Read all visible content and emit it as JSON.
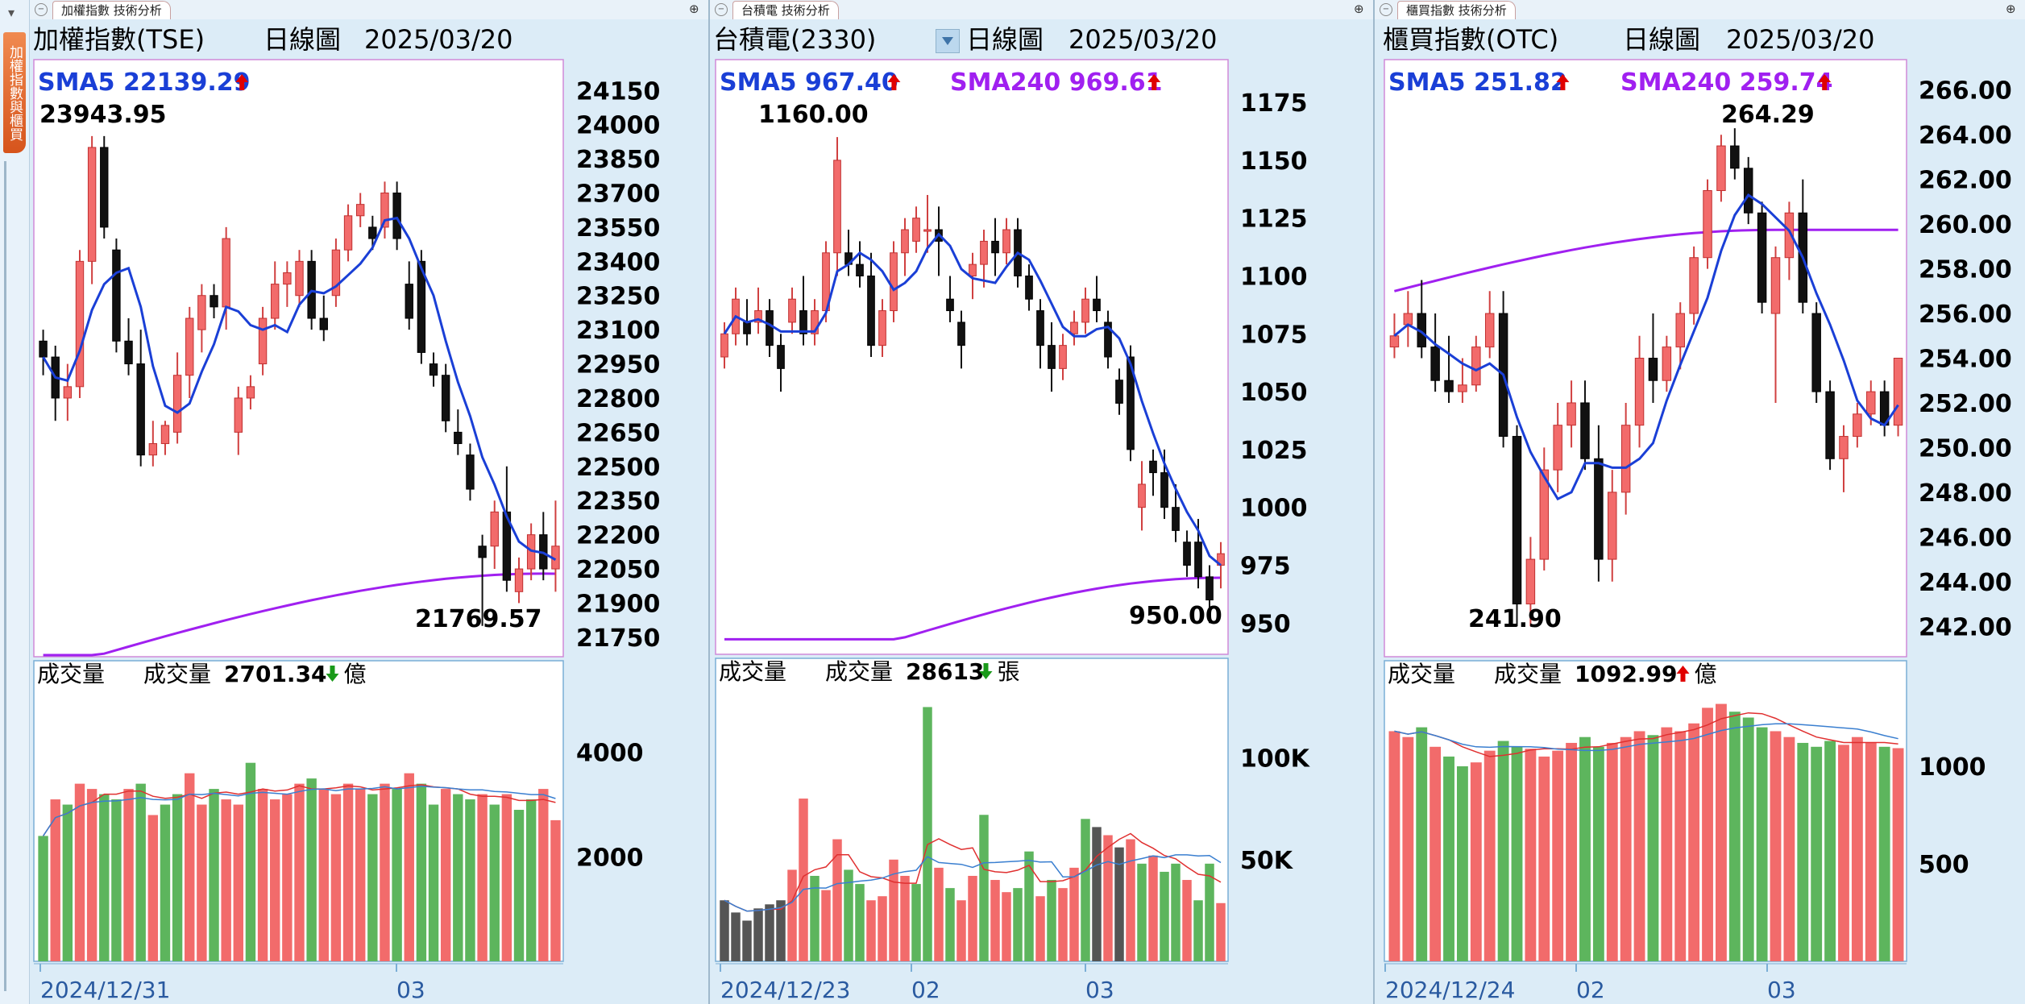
{
  "sidebar": {
    "tab_label": "加權指數與櫃買",
    "menu_icon": "triangle-down-icon"
  },
  "panels": [
    {
      "id": "tse",
      "tab_label": "加權指數 技術分析",
      "name": "加權指數(TSE)",
      "period": "日線圖",
      "date": "2025/03/20",
      "sma5_label": "SMA5 22139.29",
      "sma5_dir": "up",
      "sma240_label": "",
      "sma240_dir": "",
      "high_label": "23943.95",
      "low_label": "21769.57",
      "price_ticks": [
        24150,
        24000,
        23850,
        23700,
        23550,
        23400,
        23250,
        23100,
        22950,
        22800,
        22650,
        22500,
        22350,
        22200,
        22050,
        21900,
        21750
      ],
      "price_tick_labels": [
        "24150",
        "24000",
        "23850",
        "23700",
        "23550",
        "23400",
        "23250",
        "23100",
        "22950",
        "22800",
        "22650",
        "22500",
        "22350",
        "22200",
        "22050",
        "21900",
        "21750"
      ],
      "vol_title": "成交量",
      "vol_label": "成交量",
      "vol_value": "2701.34",
      "vol_dir": "down",
      "vol_unit": "億",
      "vol_ticks": [
        4000,
        2000
      ],
      "vol_tick_labels": [
        "4000",
        "2000"
      ],
      "date_labels": [
        "2024/12/31",
        "03"
      ],
      "colors": {
        "up": "#f26b6b",
        "down": "#111111",
        "vol_up": "#f26b6b",
        "vol_down": "#5db55d",
        "sma5": "#1a3fd6",
        "sma240": "#a020f0"
      }
    },
    {
      "id": "tsmc",
      "tab_label": "台積電 技術分析",
      "name": "台積電(2330)",
      "period": "日線圖",
      "date": "2025/03/20",
      "sma5_label": "SMA5 967.40",
      "sma5_dir": "up",
      "sma240_label": "SMA240 969.61",
      "sma240_dir": "up",
      "high_label": "1160.00",
      "low_label": "950.00",
      "price_ticks": [
        1175,
        1150,
        1125,
        1100,
        1075,
        1050,
        1025,
        1000,
        975,
        950
      ],
      "price_tick_labels": [
        "1175",
        "1150",
        "1125",
        "1100",
        "1075",
        "1050",
        "1025",
        "1000",
        "975",
        "950"
      ],
      "vol_title": "成交量",
      "vol_label": "成交量",
      "vol_value": "28613",
      "vol_dir": "down",
      "vol_unit": "張",
      "vol_ticks": [
        100000,
        50000
      ],
      "vol_tick_labels": [
        "100K",
        "50K"
      ],
      "date_labels": [
        "2024/12/23",
        "02",
        "03"
      ],
      "colors": {
        "up": "#f26b6b",
        "down": "#111111",
        "vol_up": "#f26b6b",
        "vol_down": "#5db55d",
        "vol_flat": "#555555",
        "sma5": "#1a3fd6",
        "sma240": "#a020f0"
      }
    },
    {
      "id": "otc",
      "tab_label": "櫃買指數 技術分析",
      "name": "櫃買指數(OTC)",
      "period": "日線圖",
      "date": "2025/03/20",
      "sma5_label": "SMA5 251.82",
      "sma5_dir": "up",
      "sma240_label": "SMA240 259.74",
      "sma240_dir": "up",
      "high_label": "264.29",
      "low_label": "241.90",
      "price_ticks": [
        266,
        264,
        262,
        260,
        258,
        256,
        254,
        252,
        250,
        248,
        246,
        244,
        242
      ],
      "price_tick_labels": [
        "266.00",
        "264.00",
        "262.00",
        "260.00",
        "258.00",
        "256.00",
        "254.00",
        "252.00",
        "250.00",
        "248.00",
        "246.00",
        "244.00",
        "242.00"
      ],
      "vol_title": "成交量",
      "vol_label": "成交量",
      "vol_value": "1092.99",
      "vol_dir": "up",
      "vol_unit": "億",
      "vol_ticks": [
        1000,
        500
      ],
      "vol_tick_labels": [
        "1000",
        "500"
      ],
      "date_labels": [
        "2024/12/24",
        "02",
        "03"
      ],
      "colors": {
        "up": "#f26b6b",
        "down": "#111111",
        "vol_up": "#f26b6b",
        "vol_down": "#5db55d",
        "sma5": "#1a3fd6",
        "sma240": "#a020f0"
      }
    }
  ],
  "chart_data": [
    {
      "type": "candlestick",
      "title": "加權指數(TSE) 日線圖",
      "ylim": [
        21700,
        24250
      ],
      "vol_ylim": [
        0,
        5600
      ],
      "candles": [
        [
          23050,
          23100,
          22900,
          22980
        ],
        [
          22980,
          23030,
          22700,
          22800
        ],
        [
          22800,
          22950,
          22700,
          22850
        ],
        [
          22850,
          23450,
          22800,
          23400
        ],
        [
          23400,
          23950,
          23300,
          23900
        ],
        [
          23900,
          23950,
          23500,
          23550
        ],
        [
          23450,
          23500,
          23000,
          23050
        ],
        [
          23050,
          23150,
          22900,
          22950
        ],
        [
          22950,
          23100,
          22500,
          22550
        ],
        [
          22550,
          22700,
          22500,
          22600
        ],
        [
          22600,
          22700,
          22550,
          22680
        ],
        [
          22650,
          23000,
          22600,
          22900
        ],
        [
          22900,
          23200,
          22800,
          23150
        ],
        [
          23100,
          23300,
          23000,
          23250
        ],
        [
          23250,
          23300,
          23150,
          23200
        ],
        [
          23200,
          23550,
          23100,
          23500
        ],
        [
          22650,
          22850,
          22550,
          22800
        ],
        [
          22800,
          22900,
          22750,
          22850
        ],
        [
          22950,
          23200,
          22900,
          23150
        ],
        [
          23150,
          23400,
          23100,
          23300
        ],
        [
          23300,
          23400,
          23200,
          23350
        ],
        [
          23250,
          23450,
          23200,
          23400
        ],
        [
          23400,
          23450,
          23100,
          23150
        ],
        [
          23150,
          23250,
          23050,
          23100
        ],
        [
          23250,
          23500,
          23200,
          23450
        ],
        [
          23450,
          23650,
          23400,
          23600
        ],
        [
          23600,
          23700,
          23550,
          23650
        ],
        [
          23550,
          23600,
          23450,
          23500
        ],
        [
          23550,
          23750,
          23500,
          23700
        ],
        [
          23700,
          23750,
          23450,
          23500
        ],
        [
          23300,
          23400,
          23100,
          23150
        ],
        [
          23400,
          23450,
          22950,
          23000
        ],
        [
          22950,
          23000,
          22850,
          22900
        ],
        [
          22900,
          22950,
          22650,
          22700
        ],
        [
          22650,
          22750,
          22550,
          22600
        ],
        [
          22550,
          22600,
          22350,
          22400
        ],
        [
          22150,
          22200,
          21800,
          22100
        ],
        [
          22150,
          22350,
          22050,
          22300
        ],
        [
          22300,
          22500,
          21950,
          22000
        ],
        [
          21950,
          22100,
          21900,
          22050
        ],
        [
          22050,
          22250,
          22000,
          22200
        ],
        [
          22200,
          22300,
          22000,
          22050
        ],
        [
          22050,
          22350,
          21950,
          22150
        ]
      ],
      "volumes": [
        2400,
        3100,
        3000,
        3400,
        3300,
        3200,
        3100,
        3300,
        3400,
        2800,
        3000,
        3200,
        3600,
        3000,
        3300,
        3100,
        3000,
        3800,
        3300,
        3100,
        3200,
        3400,
        3500,
        3300,
        3200,
        3400,
        3300,
        3200,
        3400,
        3300,
        3600,
        3400,
        3000,
        3300,
        3200,
        3100,
        3200,
        3000,
        3200,
        2900,
        3100,
        3300,
        2701.34
      ],
      "vol_up_flags": [
        0,
        1,
        0,
        1,
        1,
        0,
        0,
        1,
        0,
        1,
        0,
        0,
        1,
        1,
        0,
        1,
        1,
        0,
        1,
        1,
        1,
        1,
        0,
        1,
        1,
        1,
        1,
        0,
        1,
        0,
        1,
        0,
        0,
        1,
        0,
        0,
        1,
        0,
        1,
        0,
        0,
        1,
        1
      ]
    },
    {
      "type": "candlestick",
      "title": "台積電(2330) 日線圖",
      "ylim": [
        940,
        1190
      ],
      "vol_ylim": [
        0,
        145000
      ],
      "candles": [
        [
          1065,
          1080,
          1060,
          1075
        ],
        [
          1075,
          1095,
          1070,
          1090
        ],
        [
          1080,
          1090,
          1070,
          1075
        ],
        [
          1080,
          1095,
          1075,
          1085
        ],
        [
          1085,
          1090,
          1065,
          1070
        ],
        [
          1070,
          1075,
          1050,
          1060
        ],
        [
          1080,
          1095,
          1075,
          1090
        ],
        [
          1085,
          1100,
          1070,
          1075
        ],
        [
          1075,
          1090,
          1070,
          1085
        ],
        [
          1085,
          1115,
          1080,
          1110
        ],
        [
          1110,
          1160,
          1100,
          1150
        ],
        [
          1110,
          1120,
          1100,
          1105
        ],
        [
          1105,
          1115,
          1095,
          1100
        ],
        [
          1100,
          1110,
          1065,
          1070
        ],
        [
          1070,
          1090,
          1065,
          1085
        ],
        [
          1085,
          1115,
          1080,
          1110
        ],
        [
          1110,
          1125,
          1100,
          1120
        ],
        [
          1115,
          1130,
          1110,
          1125
        ],
        [
          1120,
          1135,
          1110,
          1120
        ],
        [
          1120,
          1130,
          1100,
          1115
        ],
        [
          1090,
          1100,
          1080,
          1085
        ],
        [
          1080,
          1085,
          1060,
          1070
        ],
        [
          1100,
          1110,
          1090,
          1105
        ],
        [
          1105,
          1120,
          1095,
          1115
        ],
        [
          1115,
          1125,
          1100,
          1110
        ],
        [
          1110,
          1125,
          1105,
          1120
        ],
        [
          1120,
          1125,
          1095,
          1100
        ],
        [
          1100,
          1105,
          1085,
          1090
        ],
        [
          1085,
          1090,
          1060,
          1070
        ],
        [
          1070,
          1080,
          1050,
          1060
        ],
        [
          1060,
          1075,
          1055,
          1070
        ],
        [
          1075,
          1085,
          1070,
          1080
        ],
        [
          1080,
          1095,
          1075,
          1090
        ],
        [
          1090,
          1100,
          1080,
          1085
        ],
        [
          1080,
          1085,
          1060,
          1065
        ],
        [
          1055,
          1060,
          1040,
          1045
        ],
        [
          1065,
          1070,
          1020,
          1025
        ],
        [
          1000,
          1020,
          990,
          1010
        ],
        [
          1020,
          1025,
          1005,
          1015
        ],
        [
          1015,
          1025,
          995,
          1000
        ],
        [
          1000,
          1010,
          985,
          990
        ],
        [
          985,
          990,
          970,
          975
        ],
        [
          985,
          995,
          965,
          970
        ],
        [
          970,
          975,
          950,
          960
        ],
        [
          975,
          985,
          965,
          980
        ]
      ],
      "volumes": [
        30000,
        24000,
        20000,
        26000,
        28000,
        30000,
        45000,
        80000,
        42000,
        35000,
        60000,
        45000,
        38000,
        30000,
        32000,
        50000,
        42000,
        38000,
        125000,
        46000,
        36000,
        30000,
        42000,
        72000,
        40000,
        34000,
        36000,
        54000,
        32000,
        40000,
        36000,
        46000,
        70000,
        66000,
        62000,
        56000,
        60000,
        48000,
        52000,
        44000,
        48000,
        40000,
        30000,
        48000,
        28613
      ],
      "vol_up_flags": [
        1,
        0,
        0,
        1,
        0,
        1,
        1,
        1,
        0,
        1,
        1,
        0,
        0,
        1,
        1,
        1,
        1,
        0,
        0,
        1,
        0,
        1,
        1,
        0,
        1,
        1,
        0,
        0,
        1,
        0,
        1,
        1,
        0,
        0,
        1,
        0,
        1,
        0,
        1,
        0,
        0,
        1,
        0,
        0,
        1
      ]
    },
    {
      "type": "candlestick",
      "title": "櫃買指數(OTC) 日線圖",
      "ylim": [
        241,
        267
      ],
      "vol_ylim": [
        0,
        1500
      ],
      "candles": [
        [
          254.5,
          256,
          254,
          255
        ],
        [
          255.5,
          257,
          254.5,
          256
        ],
        [
          256,
          257.5,
          254,
          254.5
        ],
        [
          254.5,
          256,
          252.5,
          253
        ],
        [
          253,
          255,
          252,
          252.5
        ],
        [
          252.5,
          254,
          252,
          252.8
        ],
        [
          252.8,
          255,
          252.5,
          254.5
        ],
        [
          254.5,
          257,
          254,
          256
        ],
        [
          256,
          257,
          250,
          250.5
        ],
        [
          250.5,
          251,
          242,
          243
        ],
        [
          243,
          246,
          242,
          245
        ],
        [
          245,
          250,
          244.5,
          249
        ],
        [
          249,
          252,
          248,
          251
        ],
        [
          251,
          253,
          250,
          252
        ],
        [
          252,
          253,
          249,
          249.5
        ],
        [
          249.5,
          251,
          244,
          245
        ],
        [
          245,
          249,
          244,
          248
        ],
        [
          248,
          252,
          247,
          251
        ],
        [
          251,
          255,
          250,
          254
        ],
        [
          254,
          256,
          252,
          253
        ],
        [
          253,
          255,
          252.5,
          254.5
        ],
        [
          254.5,
          256.5,
          253.5,
          256
        ],
        [
          256,
          259,
          255.5,
          258.5
        ],
        [
          258.5,
          262,
          258,
          261.5
        ],
        [
          261.5,
          264,
          261,
          263.5
        ],
        [
          263.5,
          264.29,
          262,
          262.5
        ],
        [
          262.5,
          263,
          260,
          260.5
        ],
        [
          260.5,
          261,
          256,
          256.5
        ],
        [
          256,
          259,
          252,
          258.5
        ],
        [
          258.5,
          261,
          257.5,
          260.5
        ],
        [
          260.5,
          262,
          256,
          256.5
        ],
        [
          256,
          256.5,
          252,
          252.5
        ],
        [
          252.5,
          253,
          249,
          249.5
        ],
        [
          249.5,
          251,
          248,
          250.5
        ],
        [
          250.5,
          252,
          250,
          251.5
        ],
        [
          251.5,
          253,
          251,
          252.5
        ],
        [
          252.5,
          253,
          250.5,
          251
        ],
        [
          251,
          254,
          250.5,
          254
        ]
      ],
      "volumes": [
        1180,
        1150,
        1200,
        1100,
        1050,
        1000,
        1020,
        1080,
        1130,
        1100,
        1090,
        1050,
        1080,
        1120,
        1150,
        1100,
        1120,
        1150,
        1180,
        1160,
        1200,
        1180,
        1220,
        1300,
        1320,
        1280,
        1250,
        1200,
        1180,
        1150,
        1120,
        1100,
        1130,
        1110,
        1150,
        1120,
        1100,
        1092.99
      ],
      "vol_up_flags": [
        1,
        1,
        0,
        1,
        0,
        0,
        1,
        1,
        0,
        0,
        1,
        1,
        1,
        1,
        0,
        0,
        1,
        1,
        1,
        0,
        1,
        1,
        1,
        1,
        1,
        0,
        0,
        0,
        1,
        1,
        0,
        0,
        0,
        1,
        1,
        1,
        0,
        1
      ]
    }
  ]
}
